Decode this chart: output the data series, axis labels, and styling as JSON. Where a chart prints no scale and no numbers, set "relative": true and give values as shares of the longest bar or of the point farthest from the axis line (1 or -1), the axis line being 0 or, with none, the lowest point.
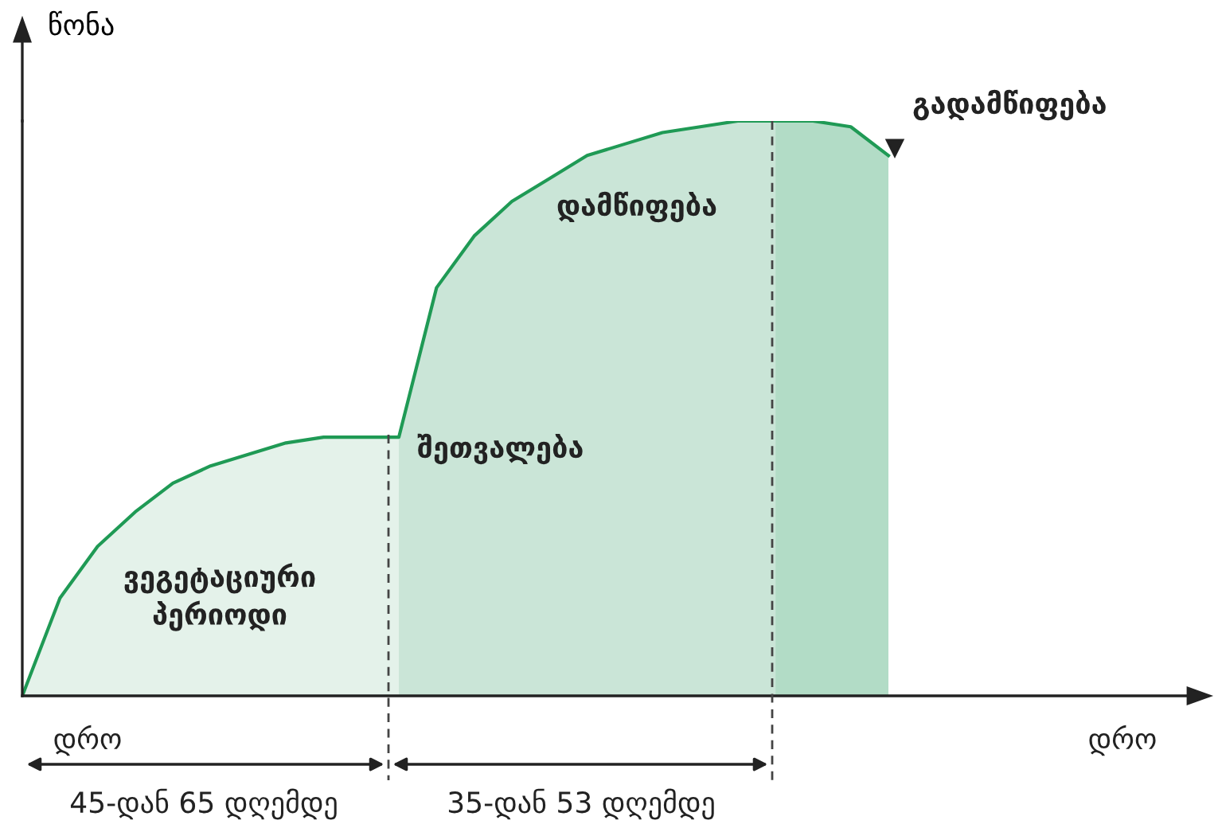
{
  "chart_data": {
    "type": "area",
    "relative": true,
    "ylabel": "წონა",
    "categories": [
      null,
      null,
      null,
      null,
      null,
      null,
      null,
      null,
      null,
      null,
      null,
      null,
      null,
      null,
      null,
      null,
      null,
      null,
      null,
      null,
      null,
      null,
      null,
      null
    ],
    "series": [
      {
        "color": "#e4f2ea",
        "values": [
          0,
          0.17,
          0.26,
          0.32,
          0.37,
          0.4,
          0.42,
          0.44,
          0.45,
          0.45,
          0.45,
          null,
          null,
          null,
          null,
          null,
          null,
          null,
          null,
          null,
          null,
          null,
          null,
          null
        ]
      },
      {
        "color": "#cae5d7",
        "values": [
          null,
          null,
          null,
          null,
          null,
          null,
          null,
          null,
          null,
          null,
          0.45,
          0.71,
          0.8,
          0.86,
          0.9,
          0.94,
          0.96,
          0.98,
          0.99,
          1.0,
          1.0,
          null,
          null,
          null
        ]
      },
      {
        "color": "#b2dcc6",
        "values": [
          null,
          null,
          null,
          null,
          null,
          null,
          null,
          null,
          null,
          null,
          null,
          null,
          null,
          null,
          null,
          null,
          null,
          null,
          null,
          null,
          1.0,
          1.0,
          0.99,
          0.94
        ]
      },
      {
        "type": "line",
        "color": "#1f9a55",
        "values": [
          0,
          0.17,
          0.26,
          0.32,
          0.37,
          0.4,
          0.42,
          0.44,
          0.45,
          0.45,
          0.45,
          0.71,
          0.8,
          0.86,
          0.9,
          0.94,
          0.96,
          0.98,
          0.99,
          1.0,
          1.0,
          1.0,
          0.99,
          0.94
        ]
      }
    ],
    "annotations": [
      "ვეგეტაციური\nპერიოდი",
      "შეთვალება",
      "დამწიფება",
      "გადამწიფება",
      "დრო",
      "45-დან 65 დღემდე",
      "35-დან 53 დღემდე",
      "დრო"
    ]
  }
}
